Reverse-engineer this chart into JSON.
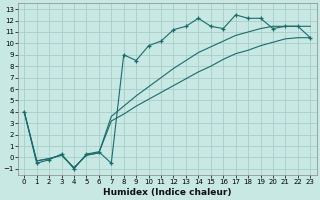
{
  "xlabel": "Humidex (Indice chaleur)",
  "xlim": [
    -0.5,
    23.5
  ],
  "ylim": [
    -1.5,
    13.5
  ],
  "xticks": [
    0,
    1,
    2,
    3,
    4,
    5,
    6,
    7,
    8,
    9,
    10,
    11,
    12,
    13,
    14,
    15,
    16,
    17,
    18,
    19,
    20,
    21,
    22,
    23
  ],
  "yticks": [
    -1,
    0,
    1,
    2,
    3,
    4,
    5,
    6,
    7,
    8,
    9,
    10,
    11,
    12,
    13
  ],
  "bg_color": "#c8e8e4",
  "grid_color": "#aacccc",
  "line_color": "#1a6b6b",
  "wiggly_x": [
    0,
    1,
    2,
    3,
    4,
    5,
    6,
    7,
    8,
    9,
    10,
    11,
    12,
    13,
    14,
    15,
    16,
    17,
    18,
    19,
    20,
    21,
    22,
    23
  ],
  "wiggly_y": [
    4.0,
    -0.5,
    -0.2,
    0.3,
    -1.0,
    0.3,
    0.5,
    -0.5,
    9.0,
    8.5,
    9.8,
    10.2,
    11.2,
    11.5,
    12.2,
    11.5,
    11.3,
    12.5,
    12.2,
    12.2,
    11.3,
    11.5,
    11.5,
    10.5
  ],
  "upper_x": [
    0,
    1,
    2,
    3,
    4,
    5,
    6,
    7,
    8,
    9,
    10,
    11,
    12,
    13,
    14,
    15,
    16,
    17,
    18,
    19,
    20,
    21,
    22,
    23
  ],
  "upper_y": [
    4.0,
    -0.3,
    -0.1,
    0.2,
    -0.9,
    0.2,
    0.4,
    3.6,
    4.5,
    5.4,
    6.2,
    7.0,
    7.8,
    8.5,
    9.2,
    9.7,
    10.2,
    10.7,
    11.0,
    11.3,
    11.5,
    11.5,
    11.5,
    11.5
  ],
  "lower_x": [
    0,
    1,
    2,
    3,
    4,
    5,
    6,
    7,
    8,
    9,
    10,
    11,
    12,
    13,
    14,
    15,
    16,
    17,
    18,
    19,
    20,
    21,
    22,
    23
  ],
  "lower_y": [
    4.0,
    -0.3,
    -0.1,
    0.2,
    -0.9,
    0.2,
    0.4,
    3.2,
    3.8,
    4.5,
    5.1,
    5.7,
    6.3,
    6.9,
    7.5,
    8.0,
    8.6,
    9.1,
    9.4,
    9.8,
    10.1,
    10.4,
    10.5,
    10.5
  ]
}
